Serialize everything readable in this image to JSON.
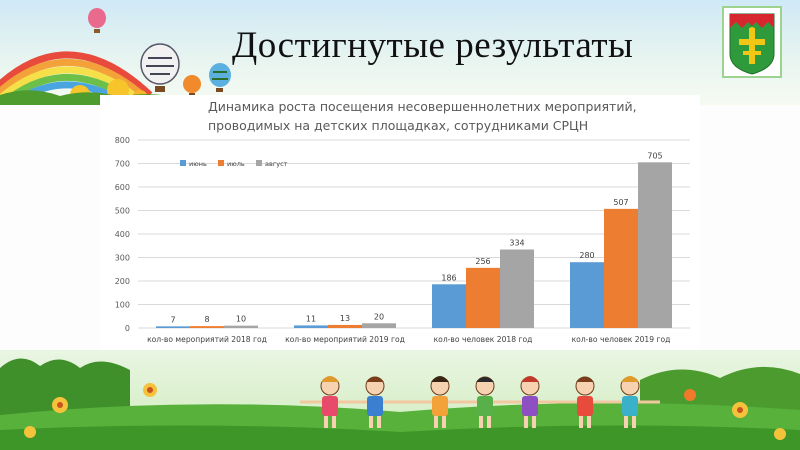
{
  "slide": {
    "title": "Достигнутые результаты",
    "emblem_icon": "coat-of-arms-icon",
    "top_decor_icons": [
      "rainbow-icon",
      "hot-air-balloon-icon",
      "sun-icon",
      "flower-icon"
    ],
    "bottom_decor_icons": [
      "children-holding-hands-icon",
      "grass-icon",
      "flower-icon"
    ]
  },
  "colors": {
    "june": "#5b9bd5",
    "july": "#ed7d31",
    "august": "#a5a5a5",
    "emblem_green": "#2f9a3c",
    "emblem_red": "#d7262d",
    "emblem_gold": "#f2c615"
  },
  "chart_data": {
    "type": "bar",
    "title_lines": [
      "Динамика роста посещения несовершеннолетних мероприятий,",
      "проводимых на детских площадках,  сотрудниками СРЦН"
    ],
    "categories": [
      "кол-во мероприятий 2018 год",
      "кол-во мероприятий 2019 год",
      "кол-во человек 2018 год",
      "кол-во человек 2019 год"
    ],
    "series": [
      {
        "name": "июнь",
        "values": [
          7,
          11,
          186,
          280
        ]
      },
      {
        "name": "июль",
        "values": [
          8,
          13,
          256,
          507
        ]
      },
      {
        "name": "август",
        "values": [
          10,
          20,
          334,
          705
        ]
      }
    ],
    "data_labels": [
      [
        "7",
        "11",
        "186",
        "280"
      ],
      [
        "8",
        "13",
        "256",
        "507"
      ],
      [
        "10",
        "20",
        "334",
        "705"
      ]
    ],
    "y_ticks": [
      "0",
      "100",
      "200",
      "300",
      "400",
      "500",
      "600",
      "700",
      "800"
    ],
    "ylim": [
      0,
      800
    ],
    "grid": true,
    "legend_position": "top-left"
  }
}
